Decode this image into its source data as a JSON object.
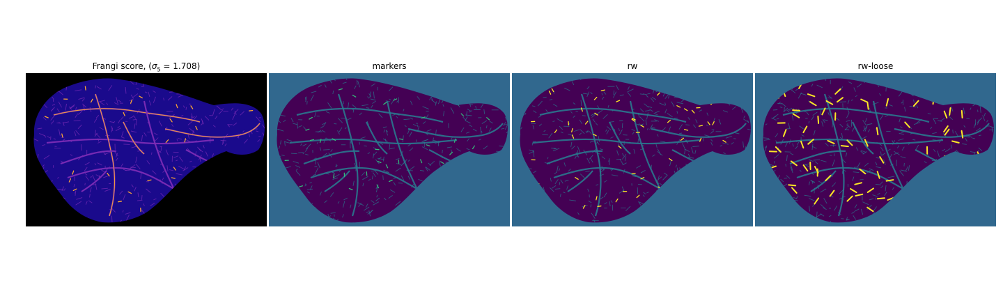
{
  "figure": {
    "panels": [
      {
        "id": "frangi",
        "title_prefix": "Frangi score, (",
        "title_symbol": "σ",
        "title_subscript": "5",
        "title_suffix": " = 1.708)",
        "background_color": "#000000",
        "tissue_color": "#1a0a8c",
        "vessel_colors": [
          "#7b2bb5",
          "#e8478b",
          "#fca636"
        ],
        "cmap": "plasma"
      },
      {
        "id": "markers",
        "title": "markers",
        "background_color": "#31688e",
        "tissue_color": "#440154",
        "vessel_colors": [
          "#2a788e",
          "#35b779"
        ],
        "cmap": "viridis"
      },
      {
        "id": "rw",
        "title": "rw",
        "background_color": "#31688e",
        "tissue_color": "#440154",
        "vessel_colors": [
          "#2a788e",
          "#fde725"
        ],
        "cmap": "viridis"
      },
      {
        "id": "rw-loose",
        "title": "rw-loose",
        "background_color": "#31688e",
        "tissue_color": "#440154",
        "vessel_colors": [
          "#2a788e",
          "#fde725"
        ],
        "cmap": "viridis"
      }
    ]
  }
}
